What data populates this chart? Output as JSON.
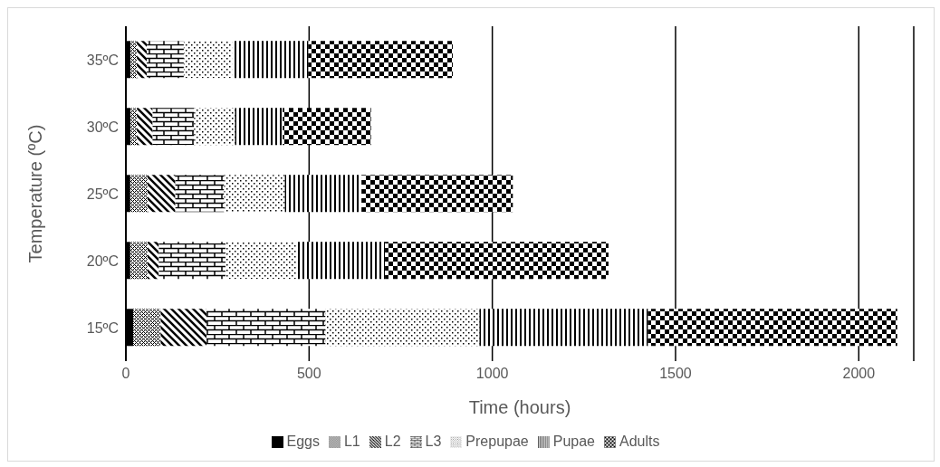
{
  "chart_data": {
    "type": "bar",
    "orientation": "horizontal",
    "stacked": true,
    "xlabel": "Time (hours)",
    "ylabel": "Temperature (ºC)",
    "categories": [
      "35ºC",
      "30ºC",
      "25ºC",
      "20ºC",
      "15ºC"
    ],
    "series": [
      {
        "name": "Eggs",
        "color": "#000000",
        "values": [
          13,
          13,
          12,
          12,
          20
        ]
      },
      {
        "name": "L1",
        "color": "#000000",
        "values": [
          17,
          17,
          47,
          47,
          75
        ]
      },
      {
        "name": "L2",
        "color": "#000000",
        "values": [
          27,
          43,
          76,
          31,
          125
        ]
      },
      {
        "name": "L3",
        "color": "#000000",
        "values": [
          101,
          113,
          133,
          182,
          325
        ]
      },
      {
        "name": "Prepupae",
        "color": "#000000",
        "values": [
          132,
          112,
          166,
          193,
          420
        ]
      },
      {
        "name": "Pupae",
        "color": "#000000",
        "values": [
          208,
          130,
          209,
          242,
          460
        ]
      },
      {
        "name": "Adults",
        "color": "#000000",
        "values": [
          394,
          241,
          413,
          610,
          680
        ]
      }
    ],
    "xlim": [
      0,
      2150
    ],
    "xticks": [
      0,
      500,
      1000,
      1500,
      2000
    ],
    "grid": "x",
    "legend": "bottom"
  }
}
